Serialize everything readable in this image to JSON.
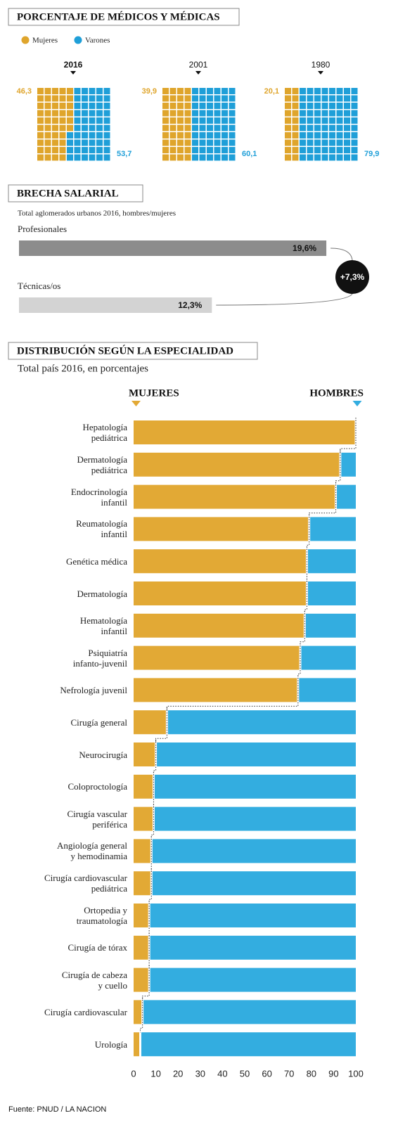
{
  "chart_data": [
    {
      "type": "waffle",
      "title": "PORCENTAJE DE MÉDICOS Y MÉDICAS",
      "series": [
        {
          "name": "Mujeres",
          "color": "#dfa52c"
        },
        {
          "name": "Varones",
          "color": "#1f9fd8"
        }
      ],
      "panels": [
        {
          "title": "2016",
          "values": [
            46.3,
            53.7
          ],
          "value_labels": [
            "46,3",
            "53,7"
          ]
        },
        {
          "title": "2001",
          "values": [
            39.9,
            60.1
          ],
          "value_labels": [
            "39,9",
            "60,1"
          ]
        },
        {
          "title": "1980",
          "values": [
            20.1,
            79.9
          ],
          "value_labels": [
            "20,1",
            "79,9"
          ]
        }
      ]
    },
    {
      "type": "bar",
      "title": "BRECHA SALARIAL",
      "subtitle": "Total aglomerados urbanos 2016, hombres/mujeres",
      "categories": [
        "Profesionales",
        "Técnicas/os"
      ],
      "values": [
        19.6,
        12.3
      ],
      "value_labels": [
        "19,6%",
        "12,3%"
      ],
      "colors": [
        "#8c8c8c",
        "#d3d3d3"
      ],
      "annotation": "+7,3%"
    },
    {
      "type": "stacked_bar",
      "title": "DISTRIBUCIÓN SEGÚN LA ESPECIALIDAD",
      "subtitle": "Total país 2016, en porcentajes",
      "categories": [
        "Hepatología\npediátrica",
        "Dermatología\npediátrica",
        "Endocrinología\ninfantil",
        "Reumatología\ninfantil",
        "Genética médica",
        "Dermatología",
        "Hematología\ninfantil",
        "Psiquiatría\ninfanto-juvenil",
        "Nefrología juvenil",
        "Cirugía general",
        "Neurocirugía",
        "Coloproctología",
        "Cirugía vascular\nperiférica",
        "Angiología general\ny hemodinamia",
        "Cirugía cardiovascular\npediátrica",
        "Ortopedia y\ntraumatología",
        "Cirugía de tórax",
        "Cirugía de cabeza\ny cuello",
        "Cirugía cardiovascular",
        "Urología"
      ],
      "series": [
        {
          "name": "MUJERES",
          "color": "#e2a935",
          "values": [
            100,
            93,
            91,
            79,
            78,
            78,
            77,
            75,
            74,
            15,
            10,
            9,
            9,
            8,
            8,
            7,
            7,
            7,
            4,
            3
          ]
        },
        {
          "name": "HOMBRES",
          "color": "#33ade0",
          "values": [
            0,
            7,
            9,
            21,
            22,
            22,
            23,
            25,
            26,
            85,
            90,
            91,
            91,
            92,
            92,
            93,
            93,
            93,
            96,
            97
          ]
        }
      ],
      "xlim": [
        0,
        100
      ],
      "xticks": [
        0,
        10,
        20,
        30,
        40,
        50,
        60,
        70,
        80,
        90,
        100
      ],
      "source": "Fuente: PNUD / LA NACION"
    }
  ]
}
